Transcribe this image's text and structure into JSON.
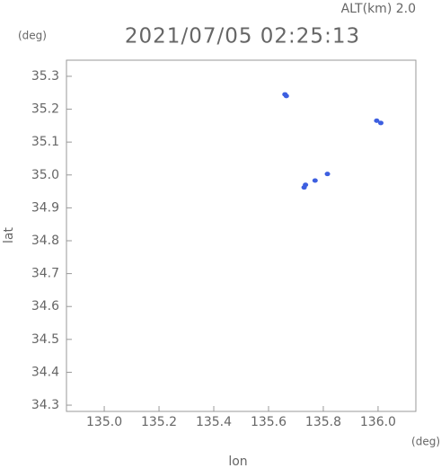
{
  "chart_data": {
    "type": "scatter",
    "title": "2021/07/05 02:25:13",
    "subtitle": "ALT(km) 2.0",
    "y_unit": "(deg)",
    "x_unit": "(deg)",
    "xlabel": "lon",
    "ylabel": "lat",
    "x": [
      135.66,
      135.665,
      135.995,
      136.01,
      135.815,
      135.77,
      135.73,
      135.735
    ],
    "values": [
      35.245,
      35.24,
      35.165,
      35.158,
      35.003,
      34.983,
      34.962,
      34.97
    ],
    "color": "#3d5fe0",
    "xlim": [
      134.862,
      136.138
    ],
    "ylim": [
      34.281,
      35.349
    ],
    "xticks": [
      {
        "value": 135,
        "label": "135.0"
      },
      135.2,
      135.4,
      135.6,
      135.8,
      {
        "value": 136,
        "label": "136.0"
      }
    ],
    "yticks": [
      34.3,
      34.4,
      34.5,
      34.6,
      34.7,
      34.8,
      34.9,
      {
        "value": 35,
        "label": "35.0"
      },
      35.1,
      35.2,
      35.3
    ]
  }
}
